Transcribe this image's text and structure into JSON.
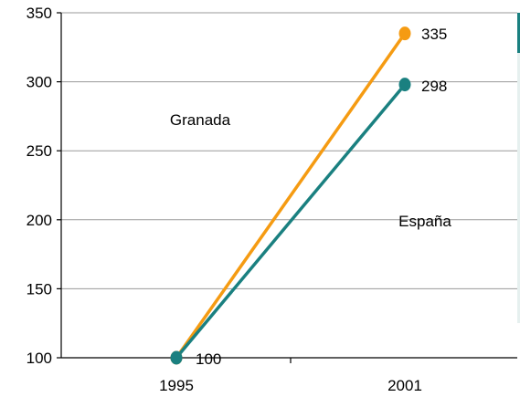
{
  "chart_data": {
    "type": "line",
    "title": "",
    "xlabel": "",
    "ylabel": "",
    "categories": [
      "1995",
      "2001"
    ],
    "ylim": [
      100,
      350
    ],
    "yticks": [
      100,
      150,
      200,
      250,
      300,
      350
    ],
    "grid": true,
    "series": [
      {
        "name": "Granada",
        "values": [
          100,
          335
        ],
        "color": "#F59B12"
      },
      {
        "name": "España",
        "values": [
          100,
          298
        ],
        "color": "#1A8080"
      }
    ],
    "data_labels": [
      "100",
      "335",
      "298"
    ],
    "annotations": [
      "Granada",
      "España"
    ]
  }
}
